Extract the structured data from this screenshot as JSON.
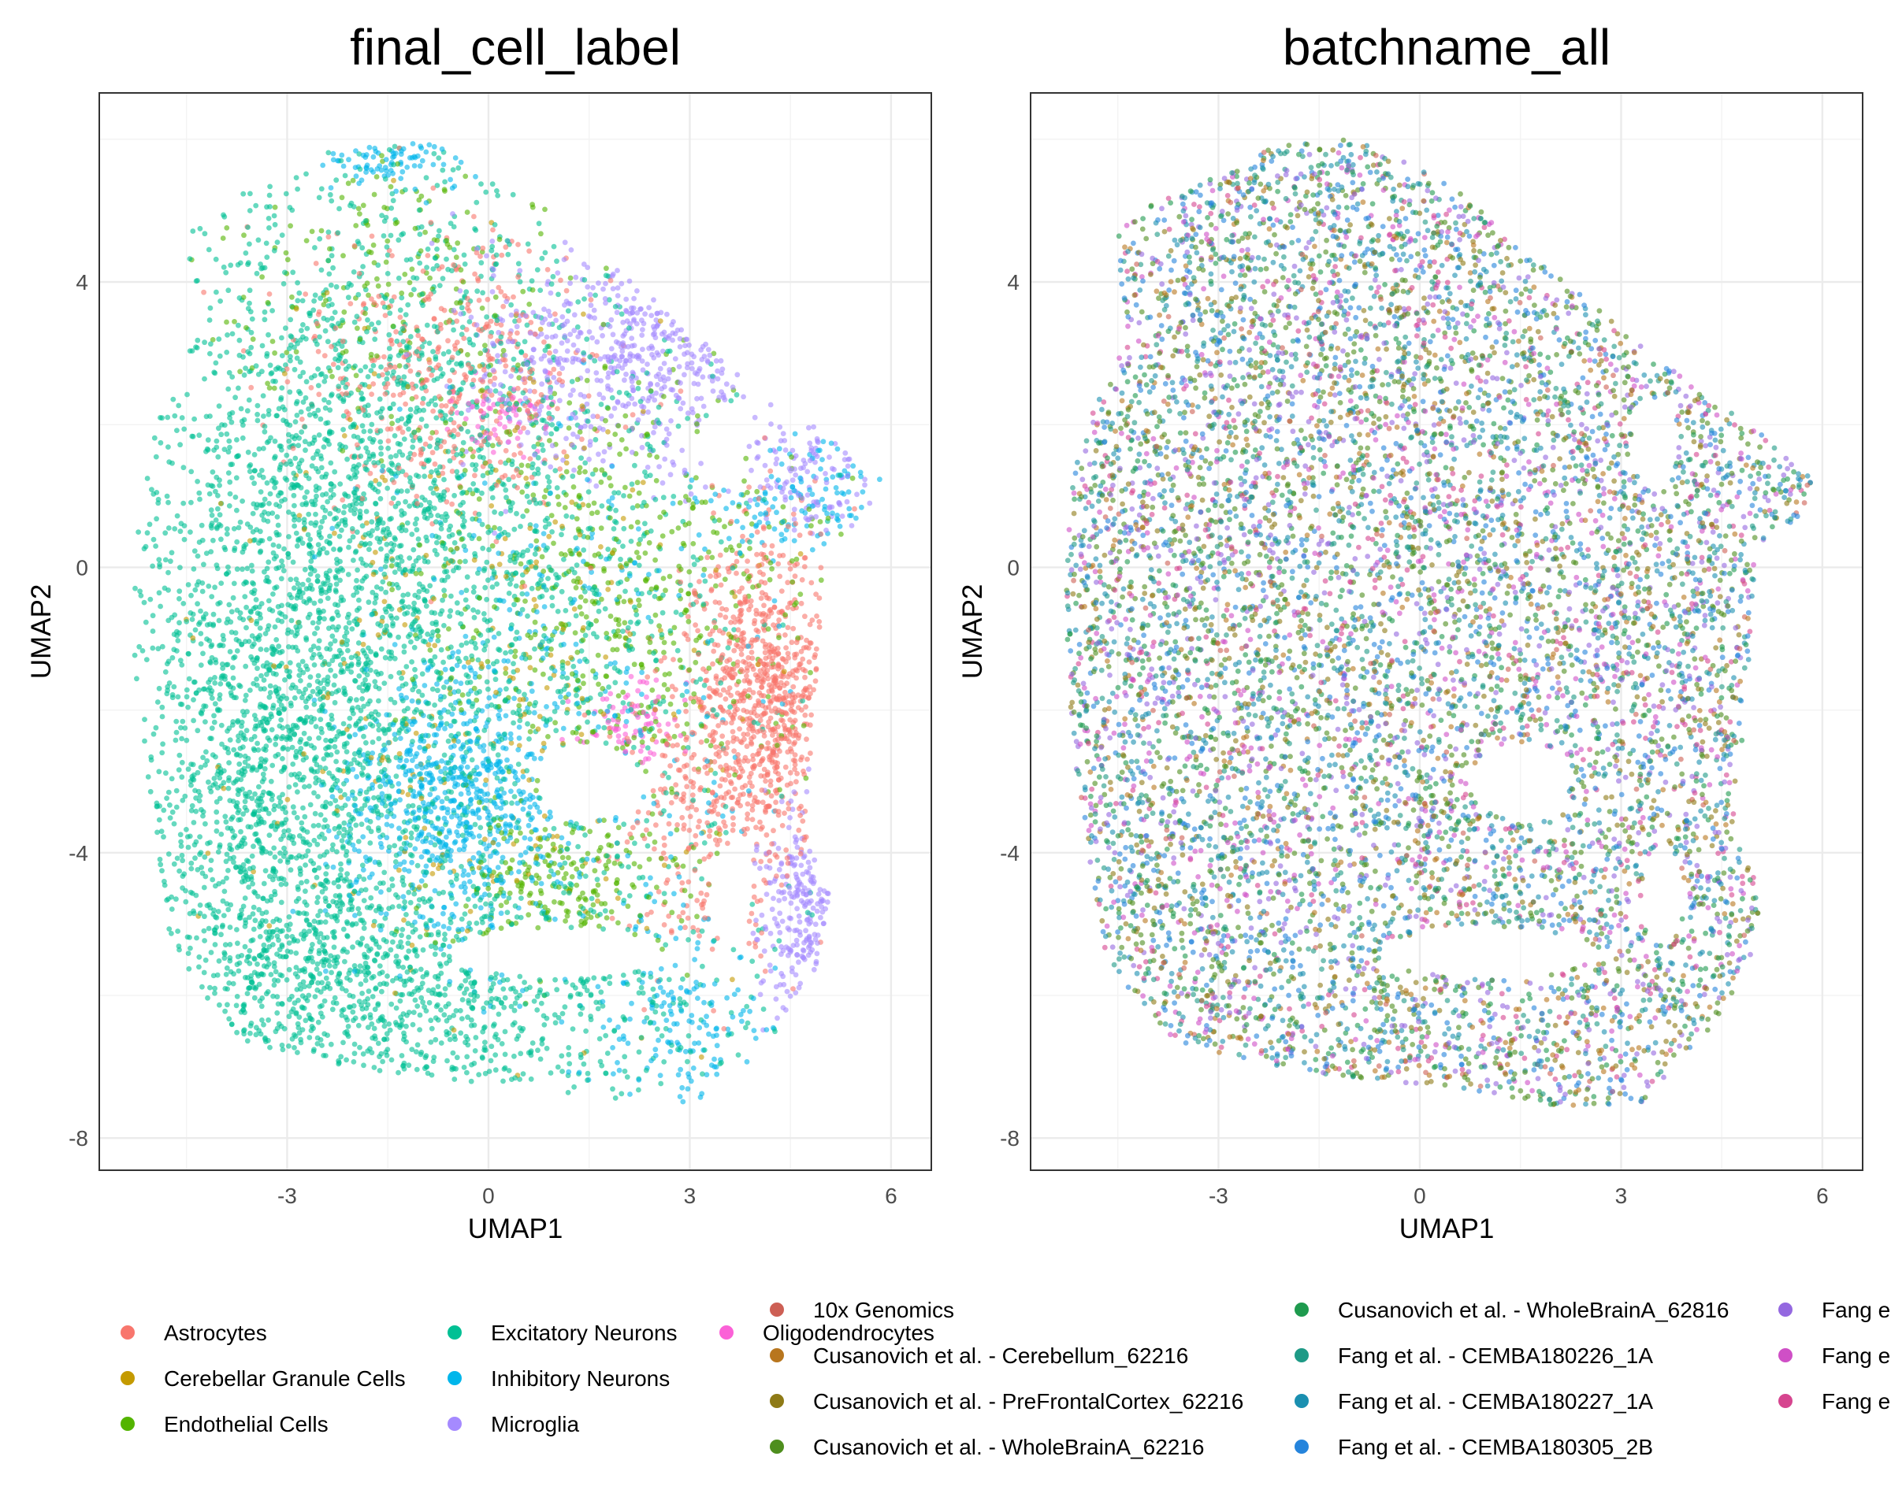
{
  "chart_data": [
    {
      "type": "scatter",
      "title": "final_cell_label",
      "xlabel": "UMAP1",
      "ylabel": "UMAP2",
      "xlim": [
        -5.8,
        6.6
      ],
      "ylim": [
        -8.45,
        6.65
      ],
      "x_ticks": [
        -3,
        0,
        3,
        6
      ],
      "y_ticks": [
        -8,
        -4,
        0,
        4
      ],
      "x_tick_labels": [
        "-3",
        "0",
        "3",
        "6"
      ],
      "y_tick_labels": [
        "-8",
        "-4",
        "0",
        "4"
      ],
      "grid": true,
      "legend_position": "bottom",
      "legend": [
        {
          "label": "Astrocytes",
          "color": "#F8766D"
        },
        {
          "label": "Cerebellar Granule Cells",
          "color": "#C49A00"
        },
        {
          "label": "Endothelial Cells",
          "color": "#53B400"
        },
        {
          "label": "Excitatory Neurons",
          "color": "#00C094"
        },
        {
          "label": "Inhibitory Neurons",
          "color": "#00B6EB"
        },
        {
          "label": "Microglia",
          "color": "#A58AFF"
        },
        {
          "label": "Oligodendrocytes",
          "color": "#FB61D7"
        }
      ],
      "clusters": [
        {
          "series": "Excitatory Neurons",
          "cx": -3.0,
          "cy": -2.5,
          "sx": 1.35,
          "sy": 2.9,
          "n": 2200
        },
        {
          "series": "Excitatory Neurons",
          "cx": -1.5,
          "cy": 1.8,
          "sx": 1.9,
          "sy": 2.3,
          "n": 1400
        },
        {
          "series": "Excitatory Neurons",
          "cx": -1.0,
          "cy": -6.0,
          "sx": 2.4,
          "sy": 0.9,
          "n": 900
        },
        {
          "series": "Excitatory Neurons",
          "cx": 0.8,
          "cy": -1.0,
          "sx": 1.6,
          "sy": 1.9,
          "n": 500
        },
        {
          "series": "Inhibitory Neurons",
          "cx": -0.5,
          "cy": -3.3,
          "sx": 0.8,
          "sy": 0.9,
          "n": 650
        },
        {
          "series": "Inhibitory Neurons",
          "cx": -1.5,
          "cy": 5.7,
          "sx": 0.5,
          "sy": 0.2,
          "n": 80
        },
        {
          "series": "Inhibitory Neurons",
          "cx": 3.0,
          "cy": -6.5,
          "sx": 0.6,
          "sy": 0.9,
          "n": 150
        },
        {
          "series": "Inhibitory Neurons",
          "cx": 1.2,
          "cy": -2.0,
          "sx": 1.4,
          "sy": 2.0,
          "n": 250
        },
        {
          "series": "Inhibitory Neurons",
          "cx": 4.8,
          "cy": 0.9,
          "sx": 0.8,
          "sy": 0.4,
          "n": 120
        },
        {
          "series": "Astrocytes",
          "cx": 4.1,
          "cy": -1.8,
          "sx": 0.55,
          "sy": 1.15,
          "n": 800
        },
        {
          "series": "Astrocytes",
          "cx": -0.5,
          "cy": 2.8,
          "sx": 1.2,
          "sy": 1.0,
          "n": 420
        },
        {
          "series": "Astrocytes",
          "cx": 3.0,
          "cy": -3.5,
          "sx": 0.6,
          "sy": 1.2,
          "n": 200
        },
        {
          "series": "Microglia",
          "cx": 2.2,
          "cy": 3.0,
          "sx": 1.2,
          "sy": 0.8,
          "n": 520
        },
        {
          "series": "Microglia",
          "cx": 4.7,
          "cy": -4.8,
          "sx": 0.35,
          "sy": 0.8,
          "n": 220
        },
        {
          "series": "Microglia",
          "cx": 4.8,
          "cy": 1.3,
          "sx": 0.5,
          "sy": 0.4,
          "n": 110
        },
        {
          "series": "Endothelial Cells",
          "cx": 2.0,
          "cy": -0.5,
          "sx": 1.5,
          "sy": 1.6,
          "n": 550
        },
        {
          "series": "Endothelial Cells",
          "cx": -1.5,
          "cy": 4.0,
          "sx": 1.2,
          "sy": 1.0,
          "n": 180
        },
        {
          "series": "Endothelial Cells",
          "cx": 1.2,
          "cy": -4.5,
          "sx": 1.0,
          "sy": 0.6,
          "n": 220
        },
        {
          "series": "Cerebellar Granule Cells",
          "cx": 0.0,
          "cy": -1.5,
          "sx": 2.0,
          "sy": 2.6,
          "n": 300
        },
        {
          "series": "Oligodendrocytes",
          "cx": 2.1,
          "cy": -2.2,
          "sx": 0.35,
          "sy": 0.3,
          "n": 80
        },
        {
          "series": "Oligodendrocytes",
          "cx": 0.2,
          "cy": 2.1,
          "sx": 0.4,
          "sy": 0.3,
          "n": 60
        }
      ]
    },
    {
      "type": "scatter",
      "title": "batchname_all",
      "xlabel": "UMAP1",
      "ylabel": "UMAP2",
      "xlim": [
        -5.8,
        6.6
      ],
      "ylim": [
        -8.45,
        6.65
      ],
      "x_ticks": [
        -3,
        0,
        3,
        6
      ],
      "y_ticks": [
        -8,
        -4,
        0,
        4
      ],
      "x_tick_labels": [
        "-3",
        "0",
        "3",
        "6"
      ],
      "y_tick_labels": [
        "-8",
        "-4",
        "0",
        "4"
      ],
      "grid": true,
      "legend_position": "bottom",
      "legend": [
        {
          "label": "10x Genomics",
          "color": "#CD5F54"
        },
        {
          "label": "Cusanovich et al. - Cerebellum_62216",
          "color": "#B8761E"
        },
        {
          "label": "Cusanovich et al. - PreFrontalCortex_62216",
          "color": "#8E7A16"
        },
        {
          "label": "Cusanovich et al. - WholeBrainA_62216",
          "color": "#4E8E1E"
        },
        {
          "label": "Cusanovich et al. - WholeBrainA_62816",
          "color": "#1E9A4E"
        },
        {
          "label": "Fang et al. - CEMBA180226_1A",
          "color": "#1E9A86"
        },
        {
          "label": "Fang et al. - CEMBA180227_1A",
          "color": "#1A8FB0"
        },
        {
          "label": "Fang et al. - CEMBA180305_2B",
          "color": "#2584DC"
        },
        {
          "label": "Fang e",
          "color": "#9468E0"
        },
        {
          "label": "Fang e",
          "color": "#CF4FC6"
        },
        {
          "label": "Fang e",
          "color": "#D6458F"
        }
      ]
    }
  ]
}
